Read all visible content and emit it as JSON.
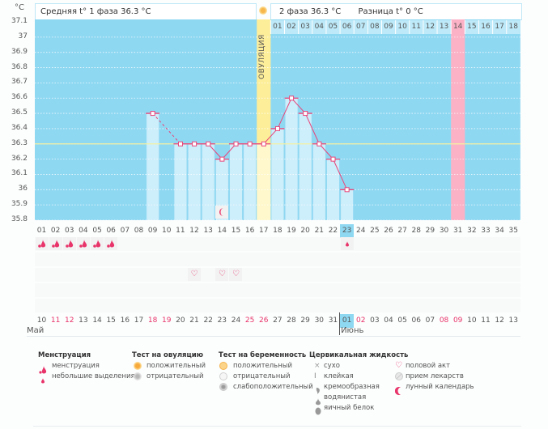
{
  "chart_data": {
    "type": "bar",
    "y_unit": "°C",
    "ylim": [
      35.8,
      37.1
    ],
    "y_ticks": [
      "37.1",
      "37",
      "36.9",
      "36.8",
      "36.7",
      "36.6",
      "36.5",
      "36.4",
      "36.3",
      "36.2",
      "36.1",
      "36",
      "35.9",
      "35.8"
    ],
    "cycle_days": [
      "01",
      "02",
      "03",
      "04",
      "05",
      "06",
      "07",
      "08",
      "09",
      "10",
      "11",
      "12",
      "13",
      "14",
      "15",
      "16",
      "17",
      "18",
      "19",
      "20",
      "21",
      "22",
      "23",
      "24",
      "25",
      "26",
      "27",
      "28",
      "29",
      "30",
      "31",
      "32",
      "33",
      "34",
      "35"
    ],
    "post_ovulation_days": [
      "01",
      "02",
      "03",
      "04",
      "05",
      "06",
      "07",
      "08",
      "09",
      "10",
      "11",
      "12",
      "13",
      "14",
      "15",
      "16",
      "17",
      "18"
    ],
    "dates": [
      "10",
      "11",
      "12",
      "13",
      "14",
      "15",
      "16",
      "17",
      "18",
      "19",
      "20",
      "21",
      "22",
      "23",
      "24",
      "25",
      "26",
      "27",
      "28",
      "29",
      "30",
      "31",
      "01",
      "02",
      "03",
      "04",
      "05",
      "06",
      "07",
      "08",
      "09",
      "10",
      "11",
      "12",
      "13"
    ],
    "weekend_dates_index": [
      1,
      2,
      8,
      9,
      15,
      16,
      23,
      29,
      30
    ],
    "months": [
      {
        "label": "Май",
        "start_index": 0
      },
      {
        "label": "Июнь",
        "start_index": 22
      }
    ],
    "series": [
      {
        "name": "temperature",
        "points": [
          {
            "day": 9,
            "value": 36.5
          },
          {
            "day": 11,
            "value": 36.3
          },
          {
            "day": 12,
            "value": 36.3
          },
          {
            "day": 13,
            "value": 36.3
          },
          {
            "day": 14,
            "value": 36.2
          },
          {
            "day": 15,
            "value": 36.3
          },
          {
            "day": 16,
            "value": 36.3
          },
          {
            "day": 17,
            "value": 36.3
          },
          {
            "day": 18,
            "value": 36.4
          },
          {
            "day": 19,
            "value": 36.6
          },
          {
            "day": 20,
            "value": 36.5
          },
          {
            "day": 21,
            "value": 36.3
          },
          {
            "day": 22,
            "value": 36.2
          },
          {
            "day": 23,
            "value": 36.0
          }
        ]
      }
    ],
    "average_line": 36.3,
    "ovulation_day": 17,
    "expected_period_day": 31,
    "current_day": 23,
    "ovulation_label": "ОВУЛЯЦИЯ"
  },
  "header": {
    "phase1": "Средняя t° 1 фаза 36.3 °C",
    "phase2": "2 фаза 36.3 °C",
    "diff": "Разница t° 0 °C"
  },
  "events": {
    "menstruation_days": [
      1,
      2,
      3,
      4,
      5,
      6
    ],
    "spotting_days": [
      23
    ],
    "intercourse_days": [
      12,
      14,
      15
    ],
    "lunar_days": [
      14
    ]
  },
  "legend": {
    "menstruation": {
      "title": "Менструация",
      "items": [
        "менструация",
        "небольшие выделения"
      ]
    },
    "ovulation_test": {
      "title": "Тест на овуляцию",
      "items": [
        "положительный",
        "отрицательный"
      ]
    },
    "pregnancy_test": {
      "title": "Тест на беременность",
      "items": [
        "положительный",
        "отрицательный",
        "слабоположительный"
      ]
    },
    "cervical": {
      "title": "Цервикальная жидкость",
      "items": [
        "сухо",
        "клейкая",
        "кремообразная",
        "водянистая",
        "яичный белок"
      ]
    },
    "other": {
      "items": [
        "половой акт",
        "прием лекарств",
        "лунный календарь"
      ]
    }
  },
  "colors": {
    "plot_bg": "#8fd8f2",
    "bar": "#cdeefb",
    "ovulation": "#fdee9a",
    "ovulation_below": "#fff8cc",
    "period": "#fbb2c6",
    "line": "#e8467a",
    "average": "#f5f0a0",
    "accent_red": "#e8346a"
  }
}
